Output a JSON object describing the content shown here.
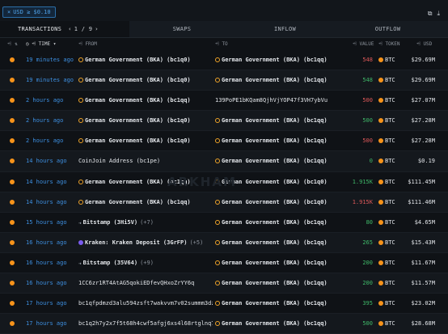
{
  "filter_chip": "USD ≥ $0.10",
  "tabs": {
    "transactions": "TRANSACTIONS",
    "page": "1 / 9",
    "swaps": "SWAPS",
    "inflow": "INFLOW",
    "outflow": "OUTFLOW"
  },
  "headers": {
    "time": "TIME",
    "from": "FROM",
    "to": "TO",
    "value": "VALUE",
    "token": "TOKEN",
    "usd": "USD"
  },
  "watermark": "ARKHAM",
  "rows": [
    {
      "time": "19 minutes ago",
      "from_icon": "bitcoin-entity",
      "from": "German Government (BKA) (bc1q0)",
      "from_count": "",
      "to_icon": "bitcoin-entity",
      "to": "German Government (BKA) (bc1qq)",
      "value": "548",
      "value_color": "red",
      "token": "BTC",
      "usd": "$29.69M"
    },
    {
      "time": "19 minutes ago",
      "from_icon": "bitcoin-entity",
      "from": "German Government (BKA) (bc1q0)",
      "from_count": "",
      "to_icon": "bitcoin-entity",
      "to": "German Government (BKA) (bc1qq)",
      "value": "548",
      "value_color": "green",
      "token": "BTC",
      "usd": "$29.69M"
    },
    {
      "time": "2 hours ago",
      "from_icon": "bitcoin-entity",
      "from": "German Government (BKA) (bc1qq)",
      "from_count": "",
      "to_icon": "",
      "to": "139PoPE1bKQam8QjhVjYOP47f3VH7ybVu",
      "value": "500",
      "value_color": "red",
      "token": "BTC",
      "usd": "$27.07M"
    },
    {
      "time": "2 hours ago",
      "from_icon": "bitcoin-entity",
      "from": "German Government (BKA) (bc1q0)",
      "from_count": "",
      "to_icon": "bitcoin-entity",
      "to": "German Government (BKA) (bc1qq)",
      "value": "500",
      "value_color": "green",
      "token": "BTC",
      "usd": "$27.28M"
    },
    {
      "time": "2 hours ago",
      "from_icon": "bitcoin-entity",
      "from": "German Government (BKA) (bc1q0)",
      "from_count": "",
      "to_icon": "bitcoin-entity",
      "to": "German Government (BKA) (bc1qq)",
      "value": "500",
      "value_color": "red",
      "token": "BTC",
      "usd": "$27.28M"
    },
    {
      "time": "14 hours ago",
      "from_icon": "",
      "from": "CoinJoin Address (bc1pe)",
      "from_count": "",
      "to_icon": "bitcoin-entity",
      "to": "German Government (BKA) (bc1qq)",
      "value": "0",
      "value_color": "green",
      "token": "BTC",
      "usd": "$0.19"
    },
    {
      "time": "14 hours ago",
      "from_icon": "bitcoin-entity",
      "from": "German Government (BKA) (bc1qq)",
      "from_count": "",
      "to_icon": "bitcoin-entity",
      "to": "German Government (BKA) (bc1q0)",
      "value": "1.915K",
      "value_color": "green",
      "token": "BTC",
      "usd": "$111.45M"
    },
    {
      "time": "14 hours ago",
      "from_icon": "bitcoin-entity",
      "from": "German Government (BKA) (bc1qq)",
      "from_count": "",
      "to_icon": "bitcoin-entity",
      "to": "German Government (BKA) (bc1q0)",
      "value": "1.915K",
      "value_color": "red",
      "token": "BTC",
      "usd": "$111.46M"
    },
    {
      "time": "15 hours ago",
      "from_icon": "bitstamp",
      "from": "Bitstamp (3Hi5V)",
      "from_count": "(+7)",
      "to_icon": "bitcoin-entity",
      "to": "German Government (BKA) (bc1qq)",
      "value": "80",
      "value_color": "green",
      "token": "BTC",
      "usd": "$4.65M"
    },
    {
      "time": "16 hours ago",
      "from_icon": "kraken",
      "from": "Kraken: Kraken Deposit (3GrFP)",
      "from_count": "(+5)",
      "to_icon": "bitcoin-entity",
      "to": "German Government (BKA) (bc1qq)",
      "value": "265",
      "value_color": "green",
      "token": "BTC",
      "usd": "$15.43M"
    },
    {
      "time": "16 hours ago",
      "from_icon": "bitstamp",
      "from": "Bitstamp (35V64)",
      "from_count": "(+9)",
      "to_icon": "bitcoin-entity",
      "to": "German Government (BKA) (bc1qq)",
      "value": "200",
      "value_color": "green",
      "token": "BTC",
      "usd": "$11.67M"
    },
    {
      "time": "16 hours ago",
      "from_icon": "",
      "from": "1CC6zr1RT4AtAG5qokiEDfevQHxoZrYY6q",
      "from_count": "",
      "to_icon": "bitcoin-entity",
      "to": "German Government (BKA) (bc1qq)",
      "value": "200",
      "value_color": "green",
      "token": "BTC",
      "usd": "$11.57M"
    },
    {
      "time": "17 hours ago",
      "from_icon": "",
      "from": "bc1qfpdmzd3alu594zsft7wakvvm7v02summm3dz",
      "from_count": "",
      "to_icon": "bitcoin-entity",
      "to": "German Government (BKA) (bc1qq)",
      "value": "395",
      "value_color": "green",
      "token": "BTC",
      "usd": "$23.02M"
    },
    {
      "time": "17 hours ago",
      "from_icon": "",
      "from": "bc1q2h7y2x7f5t68h4cwf5afgj6xs4l68rtglnq7",
      "from_count": "",
      "to_icon": "bitcoin-entity",
      "to": "German Government (BKA) (bc1qq)",
      "value": "500",
      "value_color": "green",
      "token": "BTC",
      "usd": "$28.68M"
    }
  ]
}
